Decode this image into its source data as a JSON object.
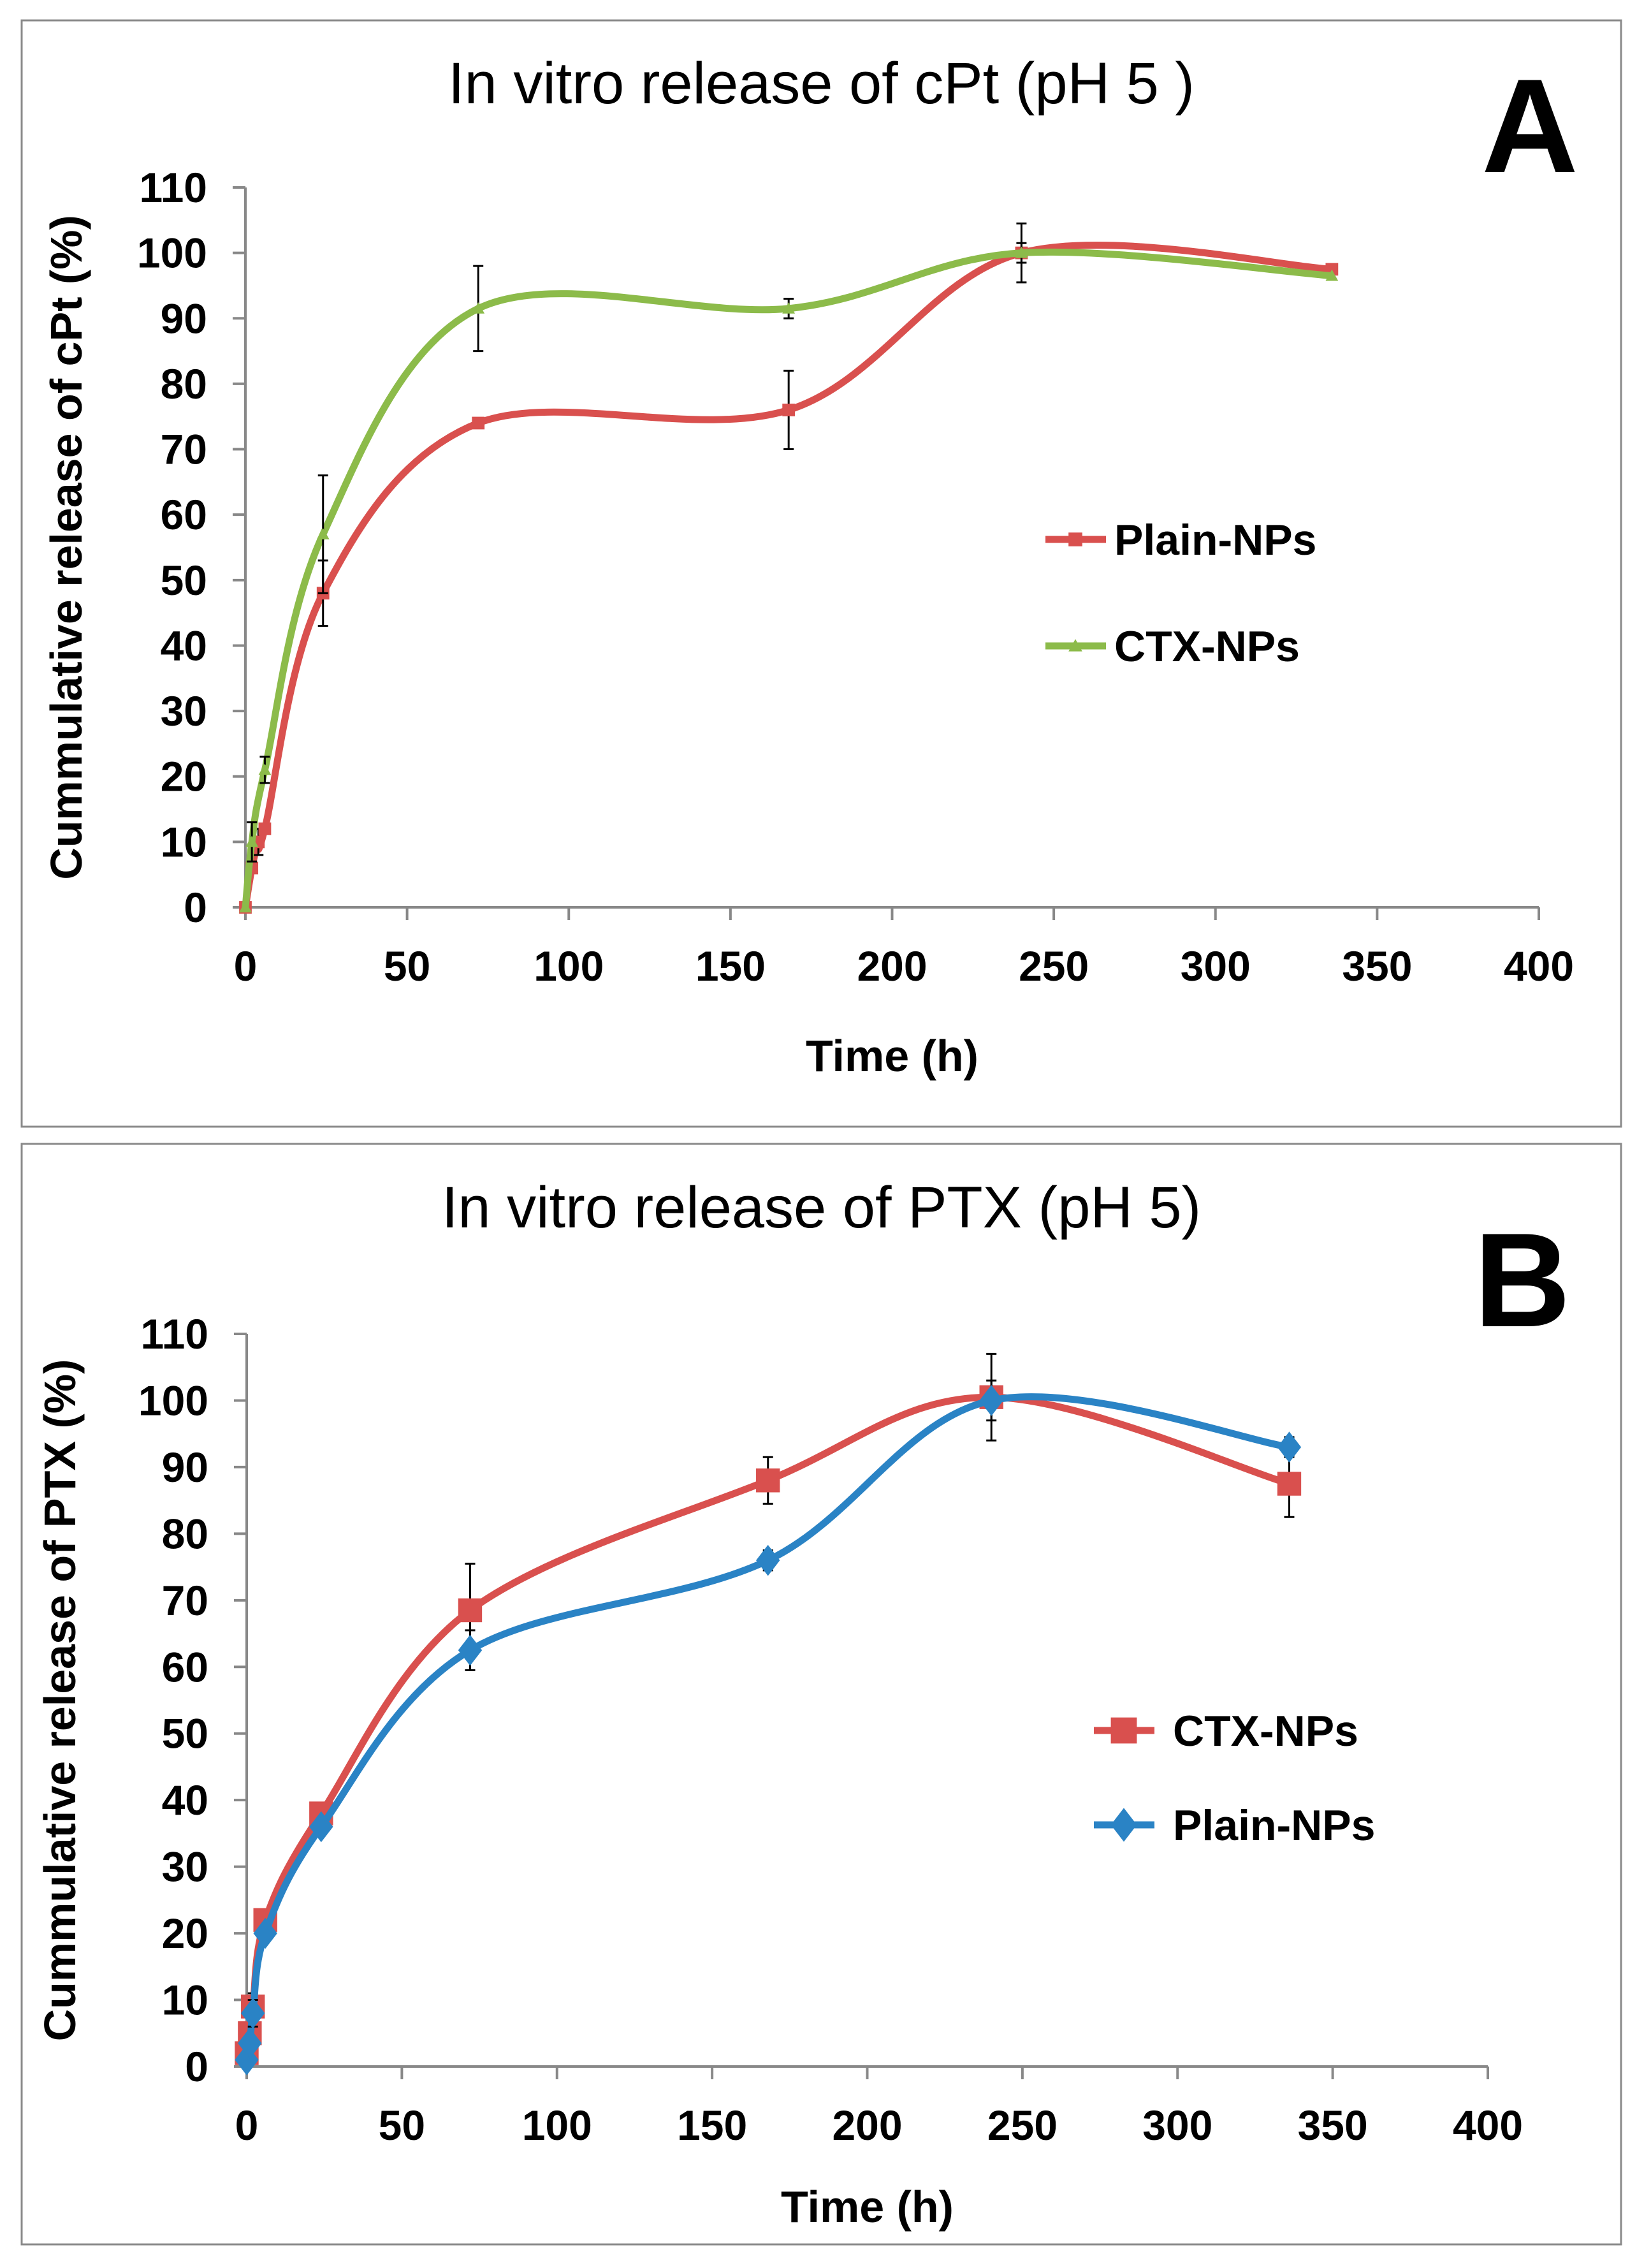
{
  "chart_data": [
    {
      "type": "line",
      "panel_label": "A",
      "title": "In vitro release of cPt (pH 5 )",
      "xlabel": "Time (h)",
      "ylabel": "Cummulative release of cPt (%)",
      "xlim": [
        0,
        400
      ],
      "ylim": [
        0,
        110
      ],
      "xticks": [
        0,
        50,
        100,
        150,
        200,
        250,
        300,
        350,
        400
      ],
      "yticks": [
        0,
        10,
        20,
        30,
        40,
        50,
        60,
        70,
        80,
        90,
        100,
        110
      ],
      "legend_position": "center-right",
      "series": [
        {
          "name": "Plain-NPs",
          "color": "#d9504e",
          "marker": "square",
          "x": [
            0,
            2,
            4,
            6,
            24,
            72,
            168,
            240,
            336
          ],
          "y": [
            0,
            6,
            10,
            12,
            48,
            74,
            76,
            100,
            97.5
          ],
          "err": [
            0,
            0,
            2,
            0,
            5,
            0,
            6,
            4.5,
            0
          ]
        },
        {
          "name": "CTX-NPs",
          "color": "#8cbb4a",
          "marker": "triangle",
          "x": [
            0,
            2,
            6,
            24,
            72,
            168,
            240,
            336
          ],
          "y": [
            0,
            10,
            21,
            57,
            91.5,
            91.5,
            100,
            96.5
          ],
          "err": [
            0,
            3,
            2,
            9,
            6.5,
            1.5,
            1.5,
            0
          ]
        }
      ]
    },
    {
      "type": "line",
      "panel_label": "B",
      "title": "In vitro release of PTX (pH 5)",
      "xlabel": "Time (h)",
      "ylabel": "Cummulative release of PTX (%)",
      "xlim": [
        0,
        400
      ],
      "ylim": [
        0,
        110
      ],
      "xticks": [
        0,
        50,
        100,
        150,
        200,
        250,
        300,
        350,
        400
      ],
      "yticks": [
        0,
        10,
        20,
        30,
        40,
        50,
        60,
        70,
        80,
        90,
        100,
        110
      ],
      "legend_position": "center-right",
      "series": [
        {
          "name": "CTX-NPs",
          "color": "#d9504e",
          "marker": "square",
          "x": [
            0,
            1,
            2,
            6,
            24,
            72,
            168,
            240,
            336
          ],
          "y": [
            2,
            5,
            9,
            22,
            38,
            68.5,
            88,
            100.5,
            87.5
          ],
          "err": [
            0,
            0,
            2,
            0,
            0,
            7,
            3.5,
            6.5,
            5
          ]
        },
        {
          "name": "Plain-NPs",
          "color": "#2a83c5",
          "marker": "diamond",
          "x": [
            0,
            1,
            2,
            6,
            24,
            72,
            168,
            240,
            336
          ],
          "y": [
            1,
            3.5,
            8,
            20,
            36,
            62.5,
            76,
            100,
            93
          ],
          "err": [
            0,
            1,
            2,
            1,
            0,
            3,
            1.5,
            3,
            1.5
          ]
        }
      ]
    }
  ]
}
